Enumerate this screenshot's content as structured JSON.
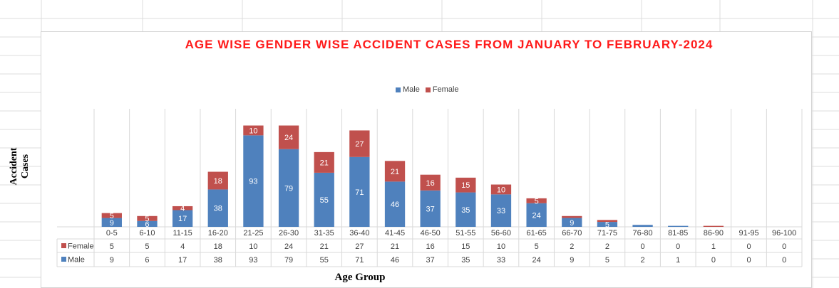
{
  "chart_data": {
    "type": "bar",
    "stacked": true,
    "title": "AGE WISE GENDER WISE ACCIDENT CASES FROM JANUARY TO FEBRUARY-2024",
    "xlabel": "Age Group",
    "ylabel": "Accident Cases",
    "categories": [
      "0-5",
      "6-10",
      "11-15",
      "16-20",
      "21-25",
      "26-30",
      "31-35",
      "36-40",
      "41-45",
      "46-50",
      "51-55",
      "56-60",
      "61-65",
      "66-70",
      "71-75",
      "76-80",
      "81-85",
      "86-90",
      "91-95",
      "96-100"
    ],
    "series": [
      {
        "name": "Male",
        "color": "#4f81bd",
        "values": [
          9,
          6,
          17,
          38,
          93,
          79,
          55,
          71,
          46,
          37,
          35,
          33,
          24,
          9,
          5,
          2,
          1,
          0,
          0,
          0
        ]
      },
      {
        "name": "Female",
        "color": "#c0504d",
        "values": [
          5,
          5,
          4,
          18,
          10,
          24,
          21,
          27,
          21,
          16,
          15,
          10,
          5,
          2,
          2,
          0,
          0,
          1,
          0,
          0
        ]
      }
    ],
    "ylim": [
      0,
      120
    ],
    "legend": "top-center",
    "data_table": true,
    "grid": "vertical"
  },
  "colors": {
    "title": "#ff1a1a",
    "male": "#4f81bd",
    "female": "#c0504d"
  }
}
